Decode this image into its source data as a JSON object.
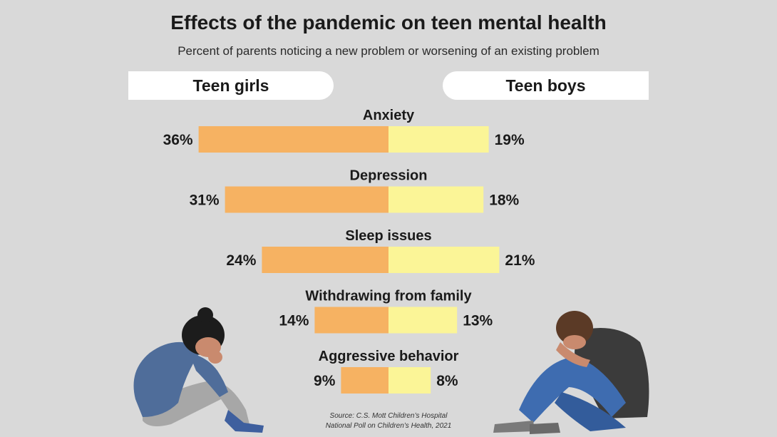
{
  "title": "Effects of the pandemic on teen mental health",
  "subtitle": "Percent of parents noticing a new problem or worsening of an existing problem",
  "groups": {
    "left": "Teen girls",
    "right": "Teen boys"
  },
  "colors": {
    "girls": "#f6b262",
    "boys": "#fbf597",
    "background": "#d9d9d9"
  },
  "source": {
    "line1": "Source: C.S. Mott Children’s Hospital",
    "line2": "National Poll on Children’s Health, 2021"
  },
  "chart_data": {
    "type": "bar",
    "orientation": "diverging-horizontal",
    "categories": [
      "Anxiety",
      "Depression",
      "Sleep issues",
      "Withdrawing from family",
      "Aggressive behavior"
    ],
    "series": [
      {
        "name": "Teen girls",
        "values": [
          36,
          31,
          24,
          14,
          9
        ],
        "labels": [
          "36%",
          "31%",
          "24%",
          "14%",
          "9%"
        ]
      },
      {
        "name": "Teen boys",
        "values": [
          19,
          18,
          21,
          13,
          8
        ],
        "labels": [
          "19%",
          "18%",
          "21%",
          "13%",
          "8%"
        ]
      }
    ],
    "unit": "%"
  }
}
